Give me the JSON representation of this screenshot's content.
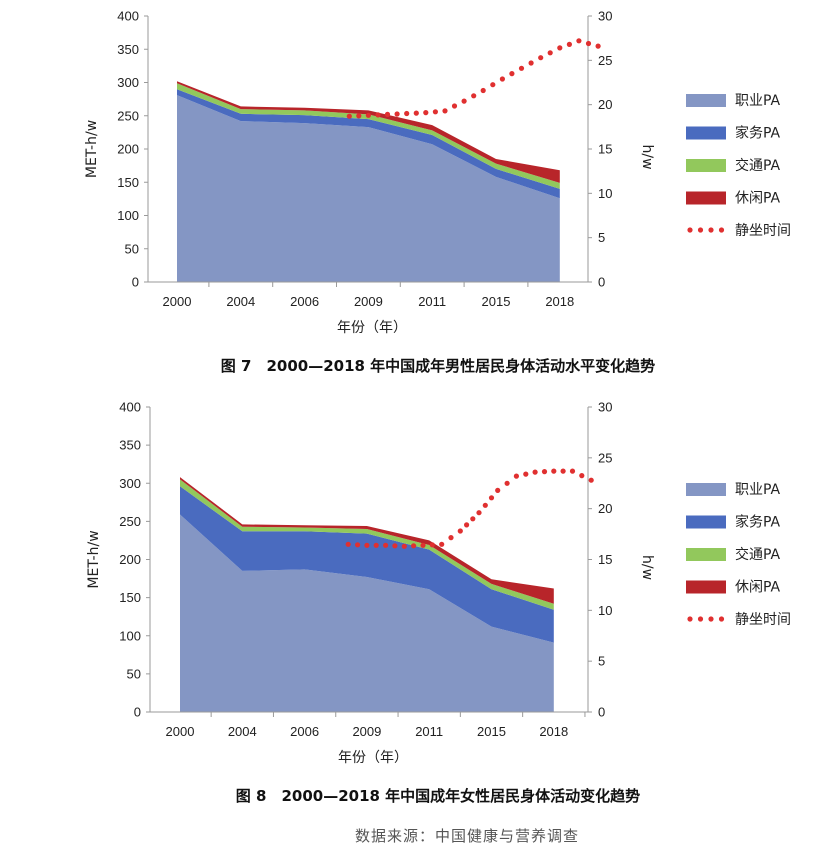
{
  "chart_data": [
    {
      "type": "area",
      "caption": "图 7　2000—2018 年中国成年男性居民身体活动水平变化趋势",
      "categories": [
        "2000",
        "2004",
        "2006",
        "2009",
        "2011",
        "2015",
        "2018"
      ],
      "ylabel": "MET-h/w",
      "y2label": "h/w",
      "xlabel": "年份（年）",
      "ylim": [
        0,
        400
      ],
      "y2lim": [
        0,
        30
      ],
      "yticks": [
        "0",
        "50",
        "100",
        "150",
        "200",
        "250",
        "300",
        "350",
        "400"
      ],
      "y2ticks": [
        "0",
        "5",
        "10",
        "15",
        "20",
        "25",
        "30"
      ],
      "series": [
        {
          "name": "职业PA",
          "color": "#8496c4",
          "values": [
            281,
            242,
            239,
            233,
            207,
            158,
            126
          ]
        },
        {
          "name": "家务PA",
          "color": "#4a6bbf",
          "values": [
            9,
            11,
            12,
            12,
            14,
            12,
            14
          ]
        },
        {
          "name": "交通PA",
          "color": "#92c85c",
          "values": [
            9,
            7,
            7,
            7,
            7,
            8,
            9
          ]
        },
        {
          "name": "休闲PA",
          "color": "#b8252a",
          "values": [
            3,
            4,
            4,
            6,
            8,
            7,
            19
          ]
        }
      ],
      "line": {
        "name": "静坐时间",
        "color": "#e03030",
        "x": [
          2.7,
          3.0,
          3.3,
          3.6,
          3.9,
          4.2,
          4.5,
          4.8,
          5.1,
          5.4,
          5.7,
          6.0,
          6.3,
          6.6
        ],
        "values": [
          18.7,
          18.8,
          18.9,
          19.0,
          19.1,
          19.3,
          20.4,
          21.6,
          22.9,
          24.1,
          25.3,
          26.4,
          27.2,
          26.6
        ]
      }
    },
    {
      "type": "area",
      "caption": "图 8　2000—2018 年中国成年女性居民身体活动变化趋势",
      "categories": [
        "2000",
        "2004",
        "2006",
        "2009",
        "2011",
        "2015",
        "2018"
      ],
      "ylabel": "MET-h/w",
      "y2label": "h/w",
      "xlabel": "年份（年）",
      "ylim": [
        0,
        400
      ],
      "y2lim": [
        0,
        30
      ],
      "yticks": [
        "0",
        "50",
        "100",
        "150",
        "200",
        "250",
        "300",
        "350",
        "400"
      ],
      "y2ticks": [
        "0",
        "5",
        "10",
        "15",
        "20",
        "25",
        "30"
      ],
      "series": [
        {
          "name": "职业PA",
          "color": "#8496c4",
          "values": [
            259,
            185,
            187,
            177,
            161,
            112,
            91
          ]
        },
        {
          "name": "家务PA",
          "color": "#4a6bbf",
          "values": [
            37,
            52,
            50,
            57,
            52,
            49,
            43
          ]
        },
        {
          "name": "交通PA",
          "color": "#92c85c",
          "values": [
            9,
            6,
            5,
            6,
            6,
            7,
            8
          ]
        },
        {
          "name": "休闲PA",
          "color": "#b8252a",
          "values": [
            3,
            3,
            3,
            4,
            6,
            6,
            20
          ]
        }
      ],
      "line": {
        "name": "静坐时间",
        "color": "#e03030",
        "x": [
          2.7,
          3.0,
          3.3,
          3.6,
          3.9,
          4.2,
          4.5,
          4.8,
          5.1,
          5.4,
          5.7,
          6.0,
          6.3,
          6.6
        ],
        "values": [
          16.5,
          16.4,
          16.4,
          16.3,
          16.4,
          16.5,
          17.8,
          19.6,
          21.8,
          23.2,
          23.6,
          23.7,
          23.7,
          22.8
        ]
      }
    }
  ],
  "source": "数据来源：中国健康与营养调查"
}
